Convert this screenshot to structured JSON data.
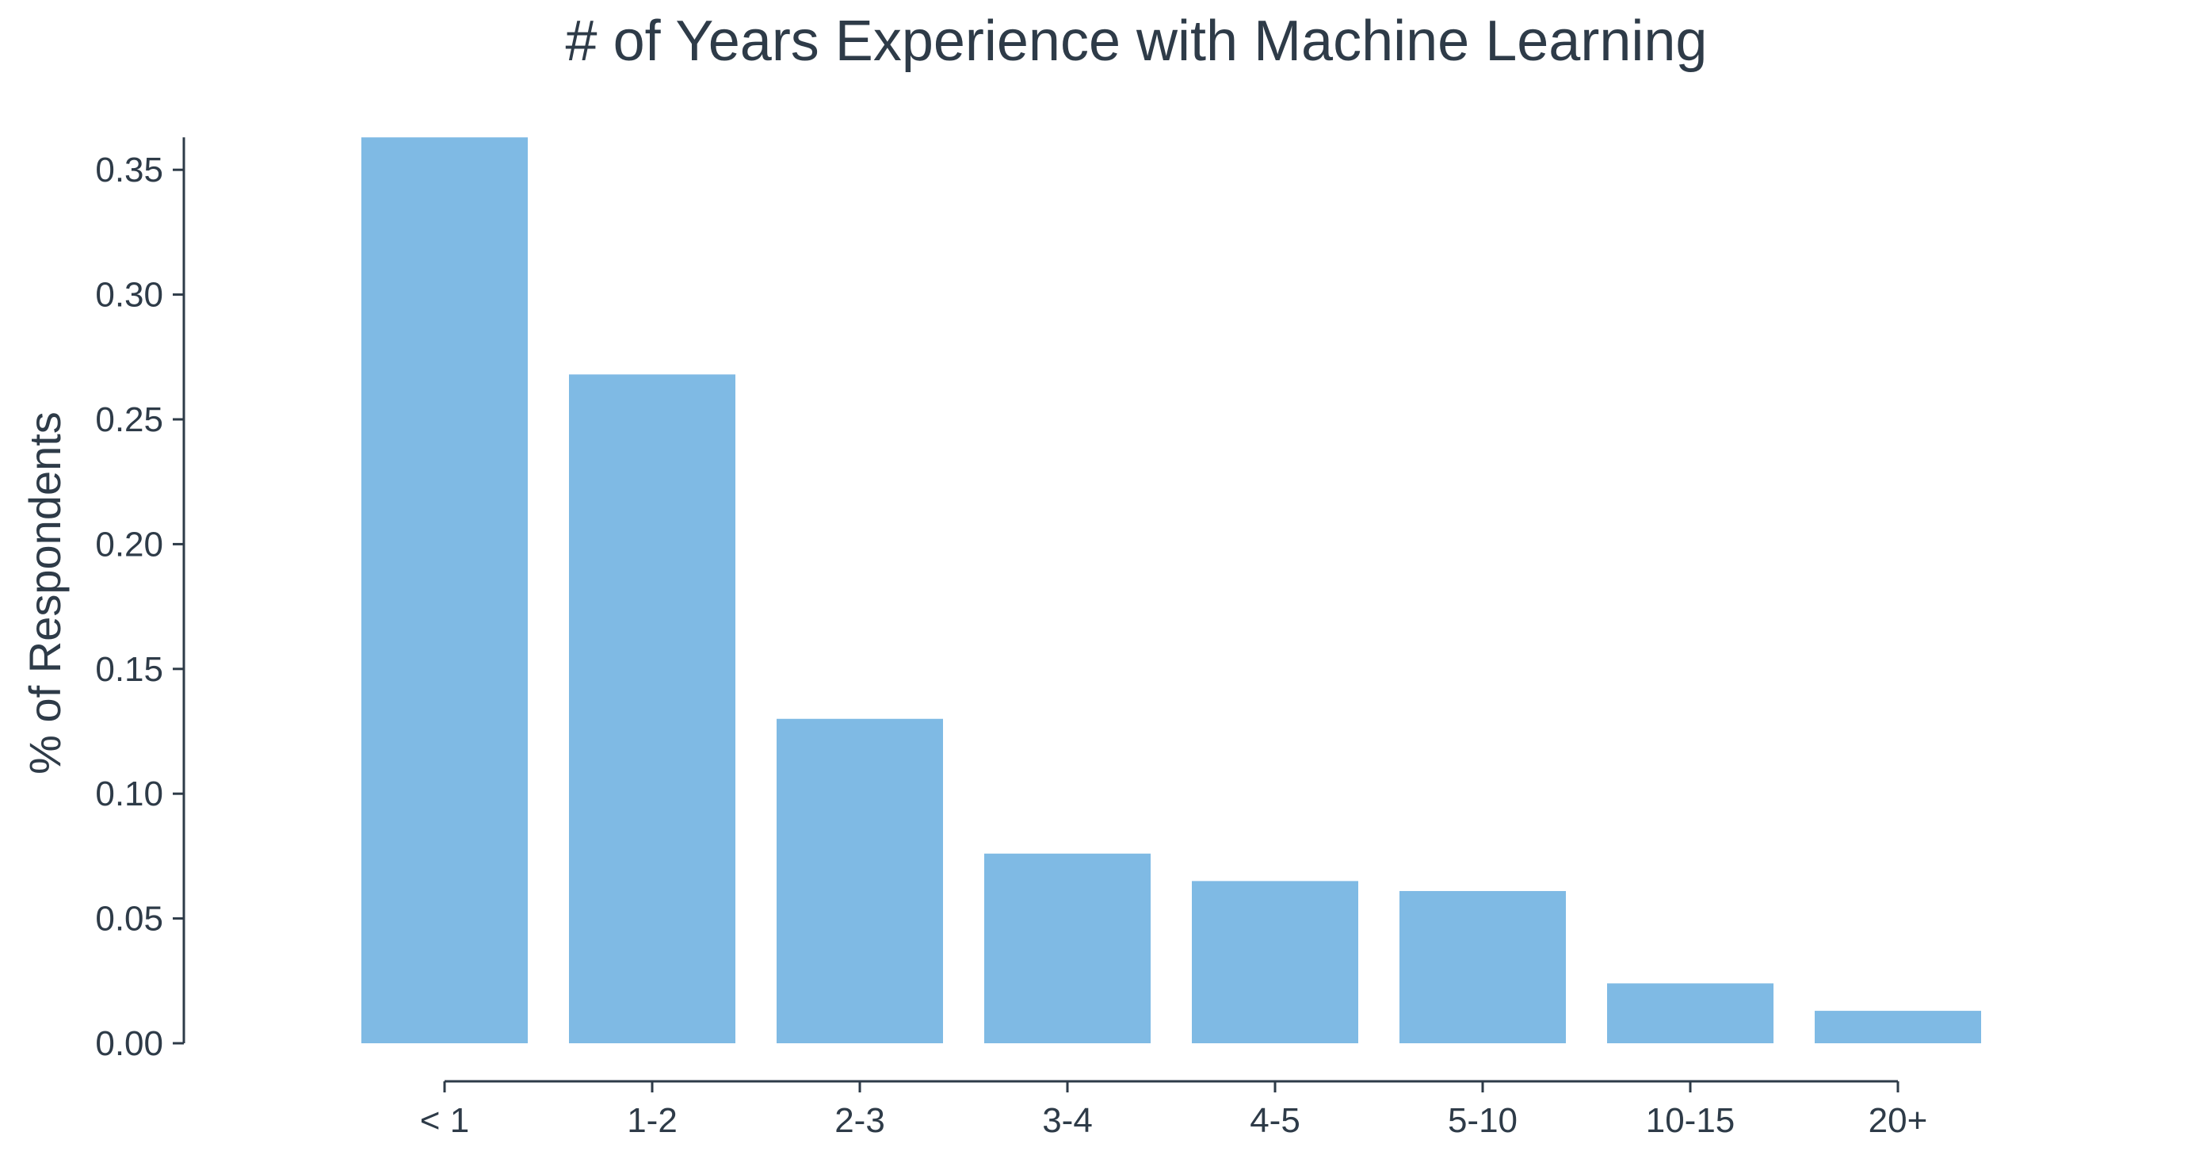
{
  "chart_data": {
    "type": "bar",
    "title": "# of Years Experience with Machine Learning",
    "xlabel": "",
    "ylabel": "% of Respondents",
    "categories": [
      "< 1",
      "1-2",
      "2-3",
      "3-4",
      "4-5",
      "5-10",
      "10-15",
      "20+"
    ],
    "values": [
      0.363,
      0.268,
      0.13,
      0.076,
      0.065,
      0.061,
      0.024,
      0.013
    ],
    "ylim": [
      0,
      0.363
    ],
    "yticks": [
      "0.00",
      "0.05",
      "0.10",
      "0.15",
      "0.20",
      "0.25",
      "0.30",
      "0.35"
    ],
    "grid": false,
    "legend": "none",
    "bar_color": "#7fbae4",
    "text_color": "#2e3b48"
  }
}
